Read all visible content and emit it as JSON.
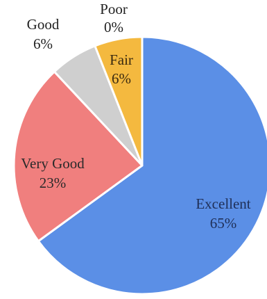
{
  "chart_data": {
    "type": "pie",
    "title": "",
    "start_angle_deg": 0,
    "direction": "clockwise",
    "slices": [
      {
        "label": "Excellent",
        "value": 65,
        "value_label": "65%",
        "color": "#5b8fe6",
        "label_color": "#1f2f57"
      },
      {
        "label": "Very Good",
        "value": 23,
        "value_label": "23%",
        "color": "#f07f7e",
        "label_color": "#2a2a2a"
      },
      {
        "label": "Good",
        "value": 6,
        "value_label": "6%",
        "color": "#cfcfcf",
        "label_color": "#222222"
      },
      {
        "label": "Poor",
        "value": 0,
        "value_label": "0%",
        "color": "#e0e0e0",
        "label_color": "#222222"
      },
      {
        "label": "Fair",
        "value": 6,
        "value_label": "6%",
        "color": "#f4b93f",
        "label_color": "#3a2a10"
      }
    ]
  }
}
